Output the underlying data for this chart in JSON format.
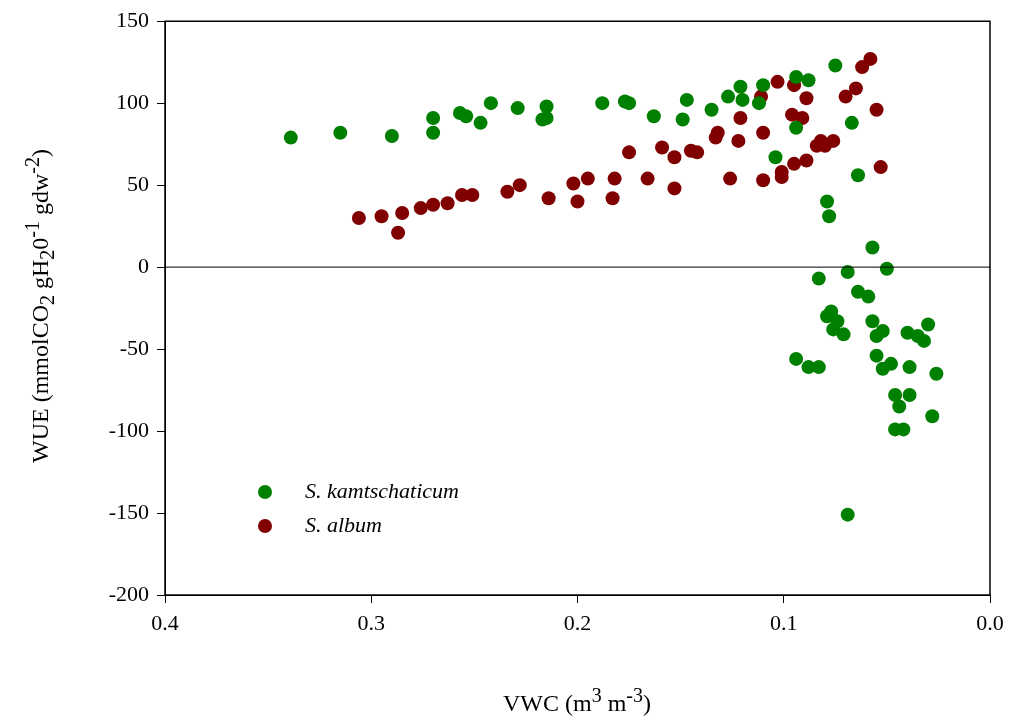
{
  "chart_data": {
    "type": "scatter",
    "xlabel": "VWC (m$^{3}$ m$^{-3}$)",
    "ylabel": "WUE (mmolCO$_{2}$ gH$_{2}$0$^{-1}$ gdw$^{-2}$)",
    "xlim": [
      0.4,
      0.0
    ],
    "xticks": [
      {
        "value": 0.4,
        "label": "0.4"
      },
      {
        "value": 0.3,
        "label": "0.3"
      },
      {
        "value": 0.2,
        "label": "0.2"
      },
      {
        "value": 0.1,
        "label": "0.1"
      },
      {
        "value": 0,
        "label": "0.0"
      }
    ],
    "ylim": [
      -200,
      150
    ],
    "yticks": [
      -200,
      -150,
      -100,
      -50,
      0,
      50,
      100,
      150
    ],
    "grid": false,
    "legend": "bottom left",
    "marker": "circle",
    "ref_lines": [
      {
        "axis": "y",
        "value": 0,
        "color": "#000000"
      }
    ],
    "series": [
      {
        "name": "S. kamtschaticum",
        "color": "#008000",
        "x": [
          0.339,
          0.315,
          0.29,
          0.27,
          0.27,
          0.257,
          0.254,
          0.247,
          0.242,
          0.229,
          0.217,
          0.215,
          0.215,
          0.188,
          0.177,
          0.175,
          0.163,
          0.147,
          0.149,
          0.135,
          0.127,
          0.121,
          0.12,
          0.112,
          0.11,
          0.094,
          0.088,
          0.075,
          0.094,
          0.104,
          0.067,
          0.064,
          0.079,
          0.078,
          0.057,
          0.05,
          0.083,
          0.069,
          0.064,
          0.059,
          0.077,
          0.079,
          0.074,
          0.076,
          0.071,
          0.057,
          0.052,
          0.055,
          0.04,
          0.035,
          0.032,
          0.03,
          0.094,
          0.088,
          0.083,
          0.055,
          0.048,
          0.052,
          0.039,
          0.026,
          0.046,
          0.039,
          0.044,
          0.028,
          0.046,
          0.042,
          0.069
        ],
        "values": [
          79,
          82,
          80,
          91,
          82,
          94,
          92,
          88,
          100,
          97,
          90,
          91,
          98,
          100,
          101,
          100,
          92,
          102,
          90,
          96,
          104,
          110,
          102,
          100,
          111,
          116,
          114,
          123,
          85,
          67,
          88,
          56,
          40,
          31,
          12,
          -1,
          -7,
          -3,
          -15,
          -18,
          -27,
          -30,
          -33,
          -38,
          -41,
          -33,
          -39,
          -42,
          -40,
          -42,
          -45,
          -35,
          -56,
          -61,
          -61,
          -54,
          -59,
          -62,
          -61,
          -65,
          -78,
          -78,
          -85,
          -91,
          -99,
          -99,
          -151
        ]
      },
      {
        "name": "S. album",
        "color": "#800000",
        "x": [
          0.306,
          0.295,
          0.287,
          0.285,
          0.276,
          0.27,
          0.263,
          0.256,
          0.251,
          0.234,
          0.228,
          0.214,
          0.202,
          0.2,
          0.195,
          0.182,
          0.183,
          0.175,
          0.159,
          0.153,
          0.166,
          0.153,
          0.145,
          0.142,
          0.133,
          0.132,
          0.122,
          0.121,
          0.126,
          0.11,
          0.111,
          0.11,
          0.103,
          0.101,
          0.101,
          0.095,
          0.089,
          0.095,
          0.096,
          0.091,
          0.089,
          0.084,
          0.082,
          0.08,
          0.076,
          0.07,
          0.065,
          0.062,
          0.058,
          0.055,
          0.053
        ],
        "values": [
          30,
          31,
          21,
          33,
          36,
          38,
          39,
          44,
          44,
          46,
          50,
          42,
          51,
          40,
          54,
          54,
          42,
          70,
          73,
          67,
          54,
          48,
          71,
          70,
          79,
          82,
          77,
          91,
          54,
          82,
          104,
          53,
          113,
          58,
          55,
          63,
          65,
          111,
          93,
          91,
          103,
          74,
          77,
          74,
          77,
          104,
          109,
          122,
          127,
          96,
          61
        ]
      }
    ]
  }
}
